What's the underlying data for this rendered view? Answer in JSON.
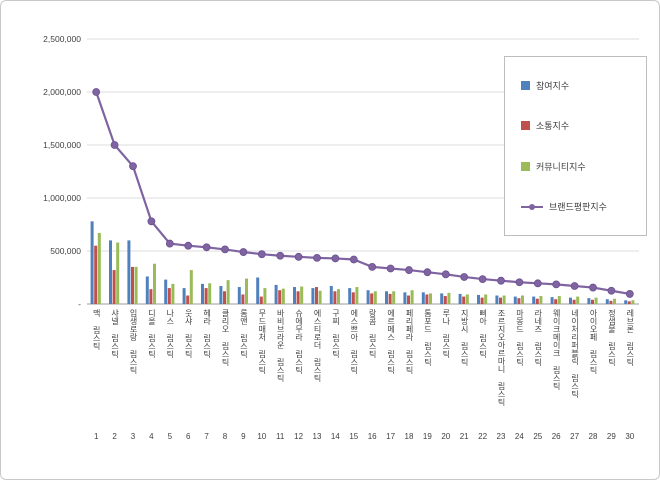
{
  "chart_data": {
    "type": "bar+line",
    "title": "",
    "ylim": [
      0,
      2500000
    ],
    "grid": true,
    "legend_position": "right-top",
    "y_ticks": [
      {
        "label": "2,500,000",
        "value": 2500000
      },
      {
        "label": "2,000,000",
        "value": 2000000
      },
      {
        "label": "1,500,000",
        "value": 1500000
      },
      {
        "label": "1,000,000",
        "value": 1000000
      },
      {
        "label": "500,000",
        "value": 500000
      },
      {
        "label": "-",
        "value": 0
      }
    ],
    "categories": [
      "맥 립스틱",
      "샤넬 립스틱",
      "입생로랑 립스틱",
      "디올 립스틱",
      "나스 립스틱",
      "웃샤 립스틱",
      "헤라 립스틱",
      "클리오 립스틱",
      "롬앤 립스틱",
      "무드매처 립스틱",
      "바비브라운 립스틱",
      "슈에무라 립스틱",
      "에스티로더 립스틱",
      "구찌 립스틱",
      "에스쁘아 립스틱",
      "랑콤 립스틱",
      "에르메스 립스틱",
      "페리페라 립스틱",
      "톰포드 립스틱",
      "루나 립스틱",
      "지방시 립스틱",
      "삐아 립스틱",
      "조르지오아르마니 립스틱",
      "마몽드 립스틱",
      "라네즈 립스틱",
      "웨이크메이크 립스틱",
      "네이처리퍼블릭 립스틱",
      "아이오페 립스틱",
      "정샘물 립스틱",
      "레브론 립스틱"
    ],
    "ranks": [
      "1",
      "2",
      "3",
      "4",
      "5",
      "6",
      "7",
      "8",
      "9",
      "10",
      "11",
      "12",
      "13",
      "14",
      "15",
      "16",
      "17",
      "18",
      "19",
      "20",
      "21",
      "22",
      "23",
      "24",
      "25",
      "26",
      "27",
      "28",
      "29",
      "30"
    ],
    "series": [
      {
        "name": "참여지수",
        "type": "bar",
        "color": "#4F81BD",
        "values": [
          780000,
          600000,
          600000,
          260000,
          230000,
          150000,
          190000,
          170000,
          160000,
          250000,
          180000,
          160000,
          150000,
          170000,
          150000,
          130000,
          120000,
          110000,
          110000,
          100000,
          95000,
          85000,
          80000,
          70000,
          70000,
          65000,
          60000,
          55000,
          45000,
          35000
        ]
      },
      {
        "name": "소통지수",
        "type": "bar",
        "color": "#C0504D",
        "values": [
          550000,
          320000,
          350000,
          140000,
          150000,
          80000,
          150000,
          120000,
          90000,
          70000,
          130000,
          120000,
          160000,
          120000,
          110000,
          100000,
          95000,
          80000,
          90000,
          75000,
          70000,
          60000,
          60000,
          55000,
          50000,
          45000,
          40000,
          40000,
          30000,
          25000
        ]
      },
      {
        "name": "커뮤니티지수",
        "type": "bar",
        "color": "#9BBB59",
        "values": [
          670000,
          580000,
          350000,
          380000,
          190000,
          320000,
          195000,
          225000,
          240000,
          150000,
          145000,
          165000,
          125000,
          140000,
          160000,
          120000,
          120000,
          130000,
          100000,
          105000,
          90000,
          90000,
          80000,
          80000,
          75000,
          75000,
          70000,
          60000,
          50000,
          35000
        ]
      },
      {
        "name": "브랜드평판지수",
        "type": "line",
        "color": "#8064A2",
        "values": [
          2000000,
          1500000,
          1300000,
          780000,
          570000,
          550000,
          535000,
          515000,
          490000,
          470000,
          455000,
          445000,
          435000,
          430000,
          420000,
          350000,
          335000,
          320000,
          300000,
          280000,
          255000,
          235000,
          220000,
          205000,
          195000,
          185000,
          170000,
          155000,
          125000,
          95000
        ]
      }
    ]
  }
}
